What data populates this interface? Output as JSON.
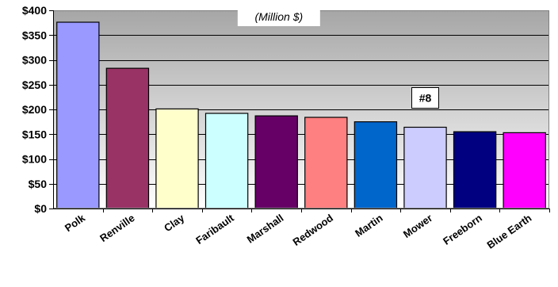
{
  "chart_data": {
    "type": "bar",
    "subtitle": "(Million $)",
    "categories": [
      "Polk",
      "Renville",
      "Clay",
      "Faribault",
      "Marshall",
      "Redwood",
      "Martin",
      "Mower",
      "Freeborn",
      "Blue Earth"
    ],
    "values": [
      376,
      283,
      201,
      192,
      187,
      184,
      175,
      164,
      155,
      153
    ],
    "bar_colors": [
      "#9999ff",
      "#993366",
      "#ffffcc",
      "#ccffff",
      "#660066",
      "#ff8080",
      "#0066cc",
      "#ccccff",
      "#000080",
      "#ff00ff"
    ],
    "ylim": [
      0,
      400
    ],
    "yticks": [
      0,
      50,
      100,
      150,
      200,
      250,
      300,
      350,
      400
    ],
    "ytick_labels": [
      "$0",
      "$50",
      "$100",
      "$150",
      "$200",
      "$250",
      "$300",
      "$350",
      "$400"
    ],
    "grid": true,
    "annotation": {
      "text": "#8",
      "category": "Mower"
    }
  }
}
